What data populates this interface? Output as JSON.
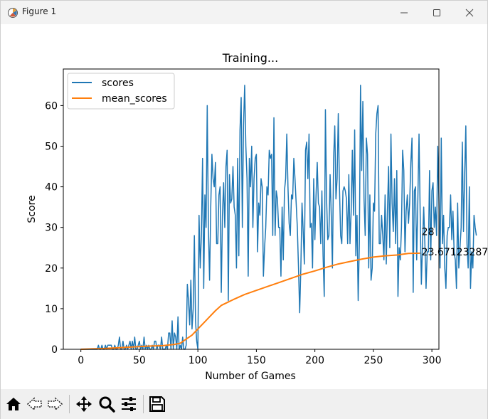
{
  "window": {
    "title": "Figure 1"
  },
  "toolbar": {
    "buttons": [
      {
        "name": "home-button",
        "icon": "home-icon"
      },
      {
        "name": "back-button",
        "icon": "arrow-left-icon"
      },
      {
        "name": "forward-button",
        "icon": "arrow-right-icon"
      },
      {
        "name": "pan-button",
        "icon": "move-icon"
      },
      {
        "name": "zoom-button",
        "icon": "magnifier-icon"
      },
      {
        "name": "configure-subplots-button",
        "icon": "sliders-icon"
      },
      {
        "name": "save-button",
        "icon": "floppy-disk-icon"
      }
    ]
  },
  "colors": {
    "scores": "#1f77b4",
    "mean_scores": "#ff7f0e"
  },
  "chart_data": {
    "type": "line",
    "title": "Training...",
    "xlabel": "Number of Games",
    "ylabel": "Score",
    "xlim": [
      -15,
      306
    ],
    "ylim": [
      0,
      69
    ],
    "xticks": [
      "0",
      "50",
      "100",
      "150",
      "200",
      "250",
      "300"
    ],
    "yticks": [
      "0",
      "10",
      "20",
      "30",
      "40",
      "50",
      "60"
    ],
    "legend_position": "top-left",
    "grid": false,
    "annotations": [
      {
        "text": "28",
        "x": 290,
        "y": 29
      },
      {
        "text": "23.67123287",
        "x": 290,
        "y": 24
      }
    ],
    "series": [
      {
        "name": "scores",
        "color": "#1f77b4",
        "values": [
          0,
          0,
          0,
          0,
          0,
          0,
          0,
          0,
          0,
          0,
          0,
          0,
          0,
          0,
          0,
          1,
          0,
          0,
          1,
          0,
          0,
          1,
          0,
          1,
          1,
          1,
          1,
          0,
          0,
          1,
          0,
          0,
          1,
          3,
          0,
          0,
          2,
          0,
          0,
          1,
          0,
          1,
          2,
          0,
          2,
          0,
          3,
          0,
          0,
          1,
          2,
          0,
          1,
          0,
          3,
          0,
          1,
          0,
          1,
          0,
          0,
          1,
          0,
          2,
          2,
          0,
          1,
          1,
          0,
          3,
          0,
          0,
          0,
          1,
          0,
          4,
          4,
          0,
          7,
          0,
          4,
          3,
          0,
          8,
          0,
          1,
          0,
          3,
          0,
          0,
          1,
          16,
          12,
          6,
          17,
          5,
          10,
          28,
          7,
          2,
          0,
          33,
          20,
          28,
          47,
          15,
          38,
          30,
          60,
          30,
          17,
          35,
          48,
          42,
          40,
          46,
          26,
          26,
          38,
          40,
          14,
          33,
          41,
          30,
          45,
          49,
          12,
          43,
          36,
          37,
          45,
          35,
          33,
          20,
          47,
          23,
          54,
          62,
          30,
          55,
          65,
          50,
          42,
          18,
          47,
          40,
          50,
          30,
          42,
          47,
          48,
          24,
          36,
          33,
          42,
          40,
          18,
          25,
          30,
          40,
          38,
          49,
          47,
          48,
          28,
          57,
          28,
          39,
          37,
          30,
          30,
          18,
          35,
          22,
          39,
          42,
          53,
          40,
          31,
          28,
          38,
          37,
          47,
          42,
          36,
          30,
          20,
          9,
          20,
          36,
          29,
          21,
          49,
          51,
          42,
          53,
          30,
          31,
          20,
          42,
          27,
          38,
          46,
          36,
          35,
          26,
          39,
          23,
          13,
          59,
          37,
          27,
          28,
          43,
          33,
          20,
          47,
          55,
          37,
          42,
          58,
          40,
          28,
          26,
          39,
          40,
          39,
          37,
          26,
          43,
          26,
          34,
          49,
          33,
          54,
          23,
          33,
          12,
          26,
          65,
          44,
          61,
          37,
          28,
          52,
          48,
          20,
          38,
          17,
          20,
          36,
          34,
          53,
          58,
          60,
          26,
          26,
          33,
          28,
          22,
          38,
          21,
          34,
          45,
          25,
          53,
          36,
          29,
          42,
          26,
          44,
          13,
          25,
          22,
          30,
          49,
          44,
          24,
          34,
          38,
          31,
          36,
          46,
          52,
          14,
          39,
          40,
          22,
          37,
          53,
          33,
          16,
          26,
          35,
          26,
          15,
          24,
          24,
          44,
          22,
          39,
          41,
          30,
          35,
          28,
          50,
          37,
          20,
          52,
          26,
          33,
          20,
          15,
          28,
          30,
          30,
          38,
          27,
          34,
          24,
          22,
          15,
          36,
          20,
          25,
          30,
          51,
          29,
          43,
          55,
          26,
          20,
          40,
          15,
          24,
          20,
          33,
          30,
          28
        ]
      },
      {
        "name": "mean_scores",
        "color": "#ff7f0e",
        "points": [
          [
            0,
            0
          ],
          [
            20,
            0.2
          ],
          [
            40,
            0.5
          ],
          [
            60,
            0.8
          ],
          [
            70,
            0.9
          ],
          [
            80,
            1.2
          ],
          [
            85,
            1.5
          ],
          [
            90,
            2.5
          ],
          [
            95,
            3.5
          ],
          [
            100,
            5
          ],
          [
            105,
            6.5
          ],
          [
            110,
            8
          ],
          [
            115,
            9.5
          ],
          [
            120,
            10.8
          ],
          [
            125,
            11.5
          ],
          [
            130,
            12.2
          ],
          [
            140,
            13.5
          ],
          [
            150,
            14.5
          ],
          [
            160,
            15.5
          ],
          [
            170,
            16.5
          ],
          [
            180,
            17.5
          ],
          [
            190,
            18.5
          ],
          [
            200,
            19.3
          ],
          [
            210,
            20.2
          ],
          [
            220,
            21
          ],
          [
            230,
            21.6
          ],
          [
            240,
            22.2
          ],
          [
            250,
            22.7
          ],
          [
            260,
            23
          ],
          [
            270,
            23.2
          ],
          [
            280,
            23.6
          ],
          [
            290,
            23.67
          ]
        ]
      }
    ]
  }
}
